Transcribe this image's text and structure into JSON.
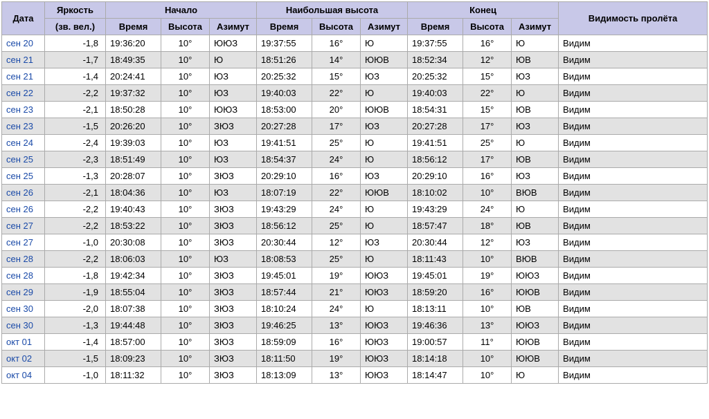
{
  "headers": {
    "date": "Дата",
    "brightness": "Яркость",
    "brightness_sub": "(зв. вел.)",
    "start": "Начало",
    "highest": "Наибольшая высота",
    "end": "Конец",
    "time": "Время",
    "alt": "Высота",
    "az": "Азимут",
    "visibility": "Видимость пролёта"
  },
  "rows": [
    {
      "date": "сен 20",
      "bright": "-1,8",
      "s_t": "19:36:20",
      "s_a": "10°",
      "s_z": "ЮЮЗ",
      "h_t": "19:37:55",
      "h_a": "16°",
      "h_z": "Ю",
      "e_t": "19:37:55",
      "e_a": "16°",
      "e_z": "Ю",
      "vis": "Видим"
    },
    {
      "date": "сен 21",
      "bright": "-1,7",
      "s_t": "18:49:35",
      "s_a": "10°",
      "s_z": "Ю",
      "h_t": "18:51:26",
      "h_a": "14°",
      "h_z": "ЮЮВ",
      "e_t": "18:52:34",
      "e_a": "12°",
      "e_z": "ЮВ",
      "vis": "Видим"
    },
    {
      "date": "сен 21",
      "bright": "-1,4",
      "s_t": "20:24:41",
      "s_a": "10°",
      "s_z": "ЮЗ",
      "h_t": "20:25:32",
      "h_a": "15°",
      "h_z": "ЮЗ",
      "e_t": "20:25:32",
      "e_a": "15°",
      "e_z": "ЮЗ",
      "vis": "Видим"
    },
    {
      "date": "сен 22",
      "bright": "-2,2",
      "s_t": "19:37:32",
      "s_a": "10°",
      "s_z": "ЮЗ",
      "h_t": "19:40:03",
      "h_a": "22°",
      "h_z": "Ю",
      "e_t": "19:40:03",
      "e_a": "22°",
      "e_z": "Ю",
      "vis": "Видим"
    },
    {
      "date": "сен 23",
      "bright": "-2,1",
      "s_t": "18:50:28",
      "s_a": "10°",
      "s_z": "ЮЮЗ",
      "h_t": "18:53:00",
      "h_a": "20°",
      "h_z": "ЮЮВ",
      "e_t": "18:54:31",
      "e_a": "15°",
      "e_z": "ЮВ",
      "vis": "Видим"
    },
    {
      "date": "сен 23",
      "bright": "-1,5",
      "s_t": "20:26:20",
      "s_a": "10°",
      "s_z": "ЗЮЗ",
      "h_t": "20:27:28",
      "h_a": "17°",
      "h_z": "ЮЗ",
      "e_t": "20:27:28",
      "e_a": "17°",
      "e_z": "ЮЗ",
      "vis": "Видим"
    },
    {
      "date": "сен 24",
      "bright": "-2,4",
      "s_t": "19:39:03",
      "s_a": "10°",
      "s_z": "ЮЗ",
      "h_t": "19:41:51",
      "h_a": "25°",
      "h_z": "Ю",
      "e_t": "19:41:51",
      "e_a": "25°",
      "e_z": "Ю",
      "vis": "Видим"
    },
    {
      "date": "сен 25",
      "bright": "-2,3",
      "s_t": "18:51:49",
      "s_a": "10°",
      "s_z": "ЮЗ",
      "h_t": "18:54:37",
      "h_a": "24°",
      "h_z": "Ю",
      "e_t": "18:56:12",
      "e_a": "17°",
      "e_z": "ЮВ",
      "vis": "Видим"
    },
    {
      "date": "сен 25",
      "bright": "-1,3",
      "s_t": "20:28:07",
      "s_a": "10°",
      "s_z": "ЗЮЗ",
      "h_t": "20:29:10",
      "h_a": "16°",
      "h_z": "ЮЗ",
      "e_t": "20:29:10",
      "e_a": "16°",
      "e_z": "ЮЗ",
      "vis": "Видим"
    },
    {
      "date": "сен 26",
      "bright": "-2,1",
      "s_t": "18:04:36",
      "s_a": "10°",
      "s_z": "ЮЗ",
      "h_t": "18:07:19",
      "h_a": "22°",
      "h_z": "ЮЮВ",
      "e_t": "18:10:02",
      "e_a": "10°",
      "e_z": "ВЮВ",
      "vis": "Видим"
    },
    {
      "date": "сен 26",
      "bright": "-2,2",
      "s_t": "19:40:43",
      "s_a": "10°",
      "s_z": "ЗЮЗ",
      "h_t": "19:43:29",
      "h_a": "24°",
      "h_z": "Ю",
      "e_t": "19:43:29",
      "e_a": "24°",
      "e_z": "Ю",
      "vis": "Видим"
    },
    {
      "date": "сен 27",
      "bright": "-2,2",
      "s_t": "18:53:22",
      "s_a": "10°",
      "s_z": "ЗЮЗ",
      "h_t": "18:56:12",
      "h_a": "25°",
      "h_z": "Ю",
      "e_t": "18:57:47",
      "e_a": "18°",
      "e_z": "ЮВ",
      "vis": "Видим"
    },
    {
      "date": "сен 27",
      "bright": "-1,0",
      "s_t": "20:30:08",
      "s_a": "10°",
      "s_z": "ЗЮЗ",
      "h_t": "20:30:44",
      "h_a": "12°",
      "h_z": "ЮЗ",
      "e_t": "20:30:44",
      "e_a": "12°",
      "e_z": "ЮЗ",
      "vis": "Видим"
    },
    {
      "date": "сен 28",
      "bright": "-2,2",
      "s_t": "18:06:03",
      "s_a": "10°",
      "s_z": "ЮЗ",
      "h_t": "18:08:53",
      "h_a": "25°",
      "h_z": "Ю",
      "e_t": "18:11:43",
      "e_a": "10°",
      "e_z": "ВЮВ",
      "vis": "Видим"
    },
    {
      "date": "сен 28",
      "bright": "-1,8",
      "s_t": "19:42:34",
      "s_a": "10°",
      "s_z": "ЗЮЗ",
      "h_t": "19:45:01",
      "h_a": "19°",
      "h_z": "ЮЮЗ",
      "e_t": "19:45:01",
      "e_a": "19°",
      "e_z": "ЮЮЗ",
      "vis": "Видим"
    },
    {
      "date": "сен 29",
      "bright": "-1,9",
      "s_t": "18:55:04",
      "s_a": "10°",
      "s_z": "ЗЮЗ",
      "h_t": "18:57:44",
      "h_a": "21°",
      "h_z": "ЮЮЗ",
      "e_t": "18:59:20",
      "e_a": "16°",
      "e_z": "ЮЮВ",
      "vis": "Видим"
    },
    {
      "date": "сен 30",
      "bright": "-2,0",
      "s_t": "18:07:38",
      "s_a": "10°",
      "s_z": "ЗЮЗ",
      "h_t": "18:10:24",
      "h_a": "24°",
      "h_z": "Ю",
      "e_t": "18:13:11",
      "e_a": "10°",
      "e_z": "ЮВ",
      "vis": "Видим"
    },
    {
      "date": "сен 30",
      "bright": "-1,3",
      "s_t": "19:44:48",
      "s_a": "10°",
      "s_z": "ЗЮЗ",
      "h_t": "19:46:25",
      "h_a": "13°",
      "h_z": "ЮЮЗ",
      "e_t": "19:46:36",
      "e_a": "13°",
      "e_z": "ЮЮЗ",
      "vis": "Видим"
    },
    {
      "date": "окт 01",
      "bright": "-1,4",
      "s_t": "18:57:00",
      "s_a": "10°",
      "s_z": "ЗЮЗ",
      "h_t": "18:59:09",
      "h_a": "16°",
      "h_z": "ЮЮЗ",
      "e_t": "19:00:57",
      "e_a": "11°",
      "e_z": "ЮЮВ",
      "vis": "Видим"
    },
    {
      "date": "окт 02",
      "bright": "-1,5",
      "s_t": "18:09:23",
      "s_a": "10°",
      "s_z": "ЗЮЗ",
      "h_t": "18:11:50",
      "h_a": "19°",
      "h_z": "ЮЮЗ",
      "e_t": "18:14:18",
      "e_a": "10°",
      "e_z": "ЮЮВ",
      "vis": "Видим"
    },
    {
      "date": "окт 04",
      "bright": "-1,0",
      "s_t": "18:11:32",
      "s_a": "10°",
      "s_z": "ЗЮЗ",
      "h_t": "18:13:09",
      "h_a": "13°",
      "h_z": "ЮЮЗ",
      "e_t": "18:14:47",
      "e_a": "10°",
      "e_z": "Ю",
      "vis": "Видим"
    }
  ]
}
